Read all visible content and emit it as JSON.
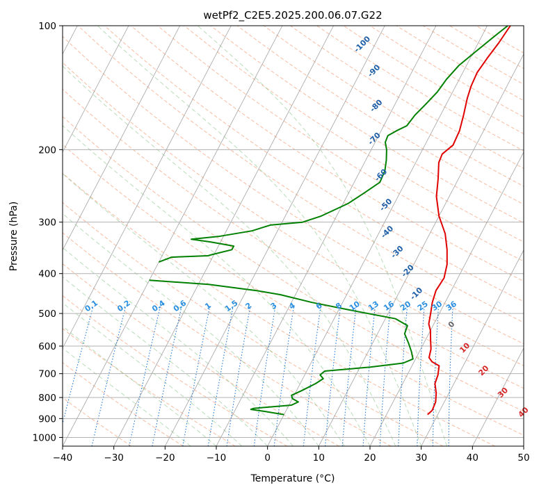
{
  "chart_data": {
    "type": "line",
    "title": "wetPf2_C2E5.2025.200.06.07.G22",
    "xlabel": "Temperature (°C)",
    "ylabel": "Pressure (hPa)",
    "xlim": [
      -40,
      50
    ],
    "ylim": [
      1050,
      100
    ],
    "y_scale": "log",
    "x_ticks": [
      -40,
      -30,
      -20,
      -10,
      0,
      10,
      20,
      30,
      40,
      50
    ],
    "x_tick_labels": [
      "−40",
      "−30",
      "−20",
      "−10",
      "0",
      "10",
      "20",
      "30",
      "40",
      "50"
    ],
    "y_ticks": [
      100,
      200,
      300,
      400,
      500,
      600,
      700,
      800,
      900,
      1000
    ],
    "y_tick_labels": [
      "100",
      "200",
      "300",
      "400",
      "500",
      "600",
      "700",
      "800",
      "900",
      "1000"
    ],
    "grid": true,
    "isotherm_labels": [
      {
        "text": "-100",
        "p": 112,
        "x": -22
      },
      {
        "text": "-90",
        "p": 130,
        "x": -17
      },
      {
        "text": "-80",
        "p": 158,
        "x": -13
      },
      {
        "text": "-70",
        "p": 190,
        "x": -10
      },
      {
        "text": "-60",
        "p": 233,
        "x": -5
      },
      {
        "text": "-50",
        "p": 275,
        "x": -1
      },
      {
        "text": "-40",
        "p": 320,
        "x": 2
      },
      {
        "text": "-30",
        "p": 358,
        "x": 6
      },
      {
        "text": "-20",
        "p": 398,
        "x": 10
      },
      {
        "text": "-10",
        "p": 452,
        "x": 14
      },
      {
        "text": "0",
        "p": 537,
        "x": 24
      },
      {
        "text": "10",
        "p": 612,
        "x": 29
      },
      {
        "text": "20",
        "p": 695,
        "x": 35
      },
      {
        "text": "30",
        "p": 786,
        "x": 41
      },
      {
        "text": "40",
        "p": 877,
        "x": 47
      }
    ],
    "mixing_ratio_labels": [
      "0.1",
      "0.2",
      "0.4",
      "0.6",
      "1",
      "1.5",
      "2",
      "3",
      "4",
      "6",
      "8",
      "10",
      "13",
      "16",
      "20",
      "25",
      "30",
      "36"
    ],
    "series": [
      {
        "color": "#e00000",
        "points": [
          {
            "p": 880,
            "t": 28.0
          },
          {
            "p": 860,
            "t": 28.5
          },
          {
            "p": 820,
            "t": 28.3
          },
          {
            "p": 780,
            "t": 27.5
          },
          {
            "p": 740,
            "t": 26.3
          },
          {
            "p": 705,
            "t": 26.0
          },
          {
            "p": 670,
            "t": 25.3
          },
          {
            "p": 655,
            "t": 23.5
          },
          {
            "p": 640,
            "t": 22.5
          },
          {
            "p": 610,
            "t": 22.0
          },
          {
            "p": 580,
            "t": 21.0
          },
          {
            "p": 550,
            "t": 20.0
          },
          {
            "p": 530,
            "t": 19.0
          },
          {
            "p": 500,
            "t": 18.3
          },
          {
            "p": 470,
            "t": 17.5
          },
          {
            "p": 440,
            "t": 17.0
          },
          {
            "p": 410,
            "t": 17.3
          },
          {
            "p": 380,
            "t": 16.5
          },
          {
            "p": 350,
            "t": 15.0
          },
          {
            "p": 320,
            "t": 13.0
          },
          {
            "p": 290,
            "t": 10.0
          },
          {
            "p": 260,
            "t": 7.5
          },
          {
            "p": 235,
            "t": 6.0
          },
          {
            "p": 215,
            "t": 4.5
          },
          {
            "p": 205,
            "t": 4.3
          },
          {
            "p": 195,
            "t": 5.5
          },
          {
            "p": 180,
            "t": 5.3
          },
          {
            "p": 165,
            "t": 4.5
          },
          {
            "p": 150,
            "t": 3.5
          },
          {
            "p": 140,
            "t": 3.0
          },
          {
            "p": 130,
            "t": 2.8
          },
          {
            "p": 120,
            "t": 3.3
          },
          {
            "p": 110,
            "t": 4.0
          },
          {
            "p": 100,
            "t": 4.5
          }
        ]
      },
      {
        "color": "#008000",
        "points": [
          {
            "p": 880,
            "t": 0.0
          },
          {
            "p": 865,
            "t": -4.0
          },
          {
            "p": 855,
            "t": -7.0
          },
          {
            "p": 850,
            "t": -6.5
          },
          {
            "p": 835,
            "t": 0.5
          },
          {
            "p": 820,
            "t": 1.5
          },
          {
            "p": 805,
            "t": 0.0
          },
          {
            "p": 790,
            "t": -0.5
          },
          {
            "p": 770,
            "t": 1.0
          },
          {
            "p": 740,
            "t": 3.0
          },
          {
            "p": 720,
            "t": 4.0
          },
          {
            "p": 705,
            "t": 3.0
          },
          {
            "p": 690,
            "t": 3.5
          },
          {
            "p": 675,
            "t": 12.0
          },
          {
            "p": 660,
            "t": 18.0
          },
          {
            "p": 645,
            "t": 19.5
          },
          {
            "p": 620,
            "t": 18.5
          },
          {
            "p": 590,
            "t": 17.0
          },
          {
            "p": 560,
            "t": 15.3
          },
          {
            "p": 535,
            "t": 15.0
          },
          {
            "p": 515,
            "t": 12.0
          },
          {
            "p": 490,
            "t": 2.0
          },
          {
            "p": 470,
            "t": -6.0
          },
          {
            "p": 450,
            "t": -13.0
          },
          {
            "p": 440,
            "t": -18.0
          },
          {
            "p": 425,
            "t": -28.0
          },
          {
            "p": 415,
            "t": -40.0
          }
        ]
      },
      {
        "color": "#008000",
        "points": [
          {
            "p": 375,
            "t": -40.0
          },
          {
            "p": 365,
            "t": -38.0
          },
          {
            "p": 362,
            "t": -31.0
          },
          {
            "p": 360,
            "t": -30.5
          },
          {
            "p": 350,
            "t": -27.0
          },
          {
            "p": 343,
            "t": -27.0
          },
          {
            "p": 335,
            "t": -32.0
          },
          {
            "p": 330,
            "t": -36.0
          },
          {
            "p": 325,
            "t": -31.0
          },
          {
            "p": 315,
            "t": -25.0
          },
          {
            "p": 305,
            "t": -22.0
          },
          {
            "p": 300,
            "t": -16.0
          },
          {
            "p": 290,
            "t": -13.0
          },
          {
            "p": 280,
            "t": -11.0
          },
          {
            "p": 270,
            "t": -9.0
          },
          {
            "p": 255,
            "t": -7.0
          },
          {
            "p": 240,
            "t": -5.0
          },
          {
            "p": 225,
            "t": -5.2
          },
          {
            "p": 212,
            "t": -6.0
          },
          {
            "p": 200,
            "t": -7.0
          },
          {
            "p": 192,
            "t": -8.0
          },
          {
            "p": 185,
            "t": -8.2
          },
          {
            "p": 180,
            "t": -7.0
          },
          {
            "p": 175,
            "t": -5.5
          },
          {
            "p": 165,
            "t": -5.0
          },
          {
            "p": 155,
            "t": -4.0
          },
          {
            "p": 145,
            "t": -3.0
          },
          {
            "p": 135,
            "t": -2.5
          },
          {
            "p": 125,
            "t": -1.5
          },
          {
            "p": 115,
            "t": 0.5
          },
          {
            "p": 106,
            "t": 2.5
          },
          {
            "p": 100,
            "t": 4.0
          }
        ]
      }
    ]
  }
}
